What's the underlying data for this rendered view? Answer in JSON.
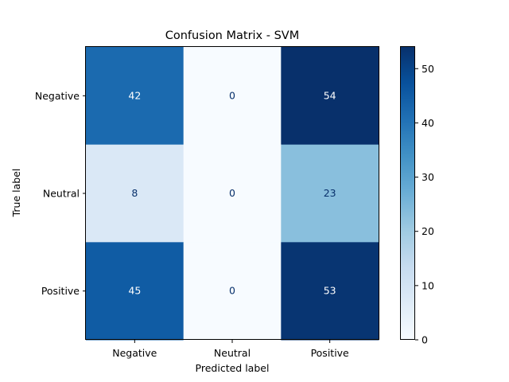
{
  "chart_data": {
    "type": "heatmap",
    "title": "Confusion Matrix - SVM",
    "xlabel": "Predicted label",
    "ylabel": "True label",
    "x_categories": [
      "Negative",
      "Neutral",
      "Positive"
    ],
    "y_categories": [
      "Negative",
      "Neutral",
      "Positive"
    ],
    "values": [
      [
        42,
        0,
        54
      ],
      [
        8,
        0,
        23
      ],
      [
        45,
        0,
        53
      ]
    ],
    "colormap": "Blues",
    "vmin": 0,
    "vmax": 54,
    "colorbar_ticks": [
      0,
      10,
      20,
      30,
      40,
      50
    ],
    "colorbar_tick_labels": [
      "0",
      "10",
      "20",
      "30",
      "40",
      "50"
    ]
  }
}
